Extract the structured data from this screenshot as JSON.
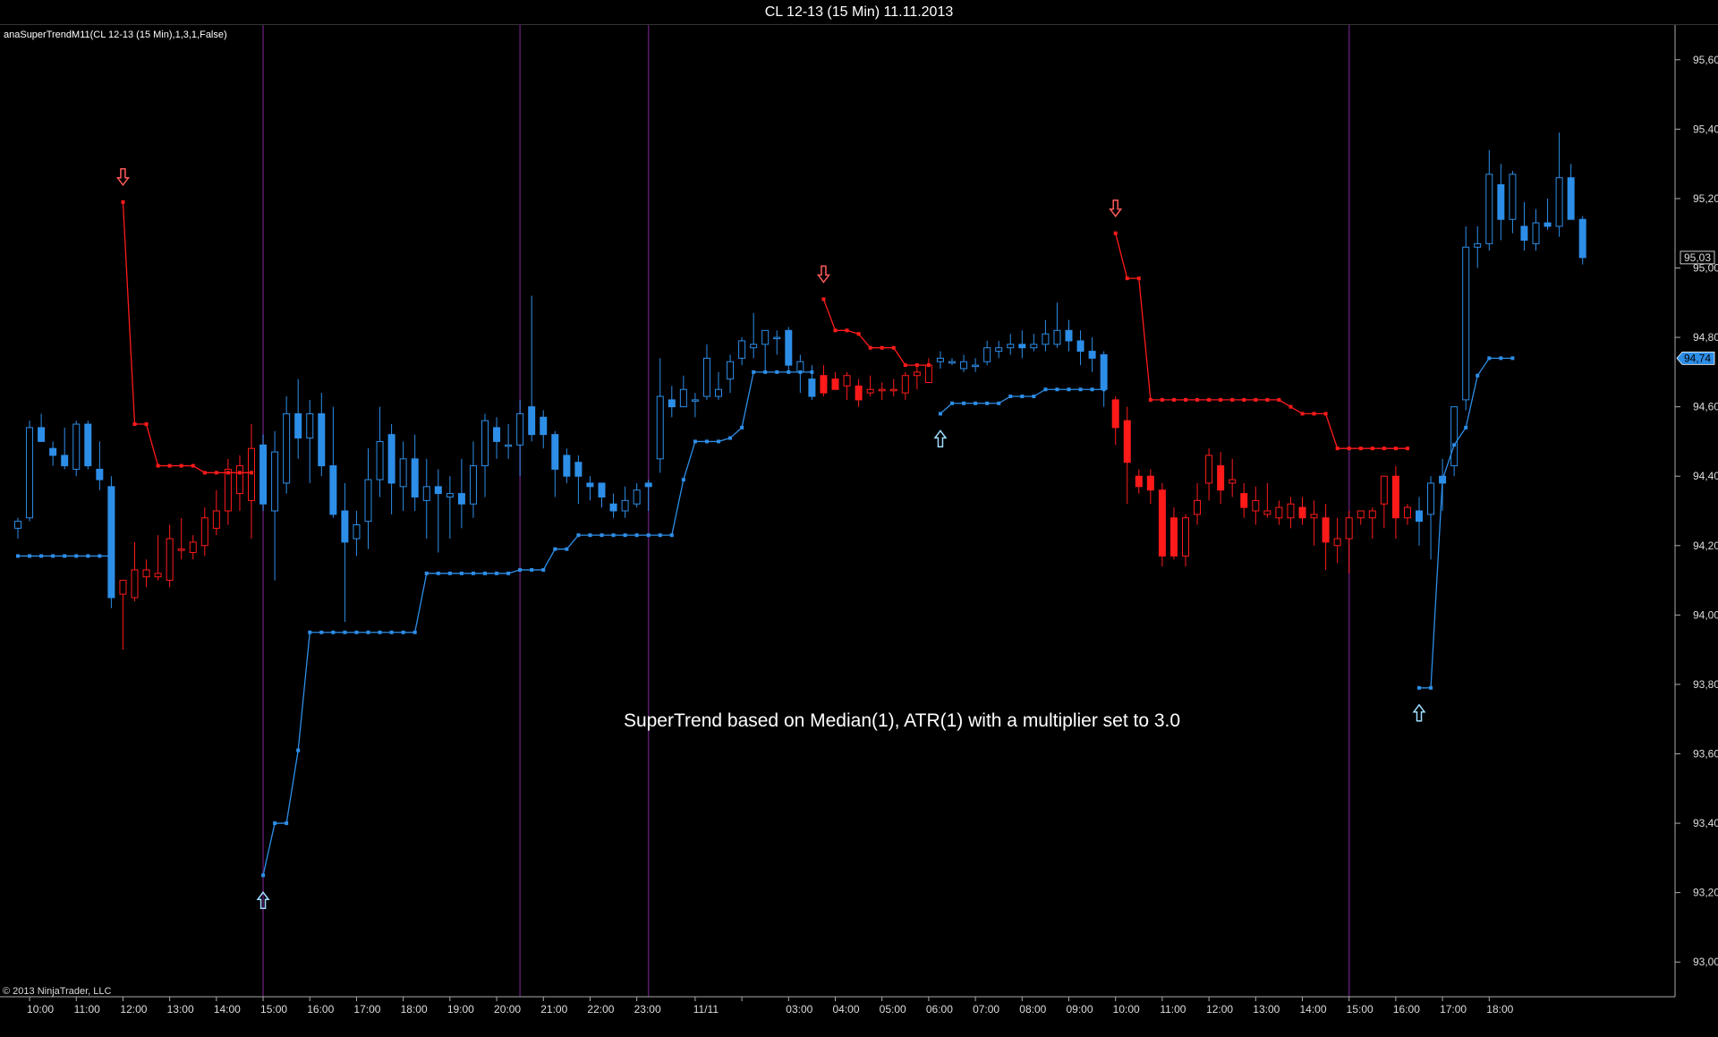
{
  "window": {
    "title": "CL 12-13 (15 Min)  11.11.2013"
  },
  "indicator_label": "anaSuperTrendM11(CL 12-13 (15 Min),1,3,1,False)",
  "annotation": "SuperTrend based on Median(1), ATR(1) with a multiplier set to 3.0",
  "copyright": "© 2013 NinjaTrader, LLC",
  "colors": {
    "up": "#2d8ee8",
    "down": "#ff1a1a",
    "session_line": "#5a1a6a",
    "background": "#000000",
    "axis": "#aaaaaa",
    "up_arrow": "#9fdcff",
    "down_arrow": "#ff5a5a"
  },
  "chart_data": {
    "type": "candlestick",
    "ylim": [
      92.9,
      95.7
    ],
    "yticks": [
      "93,00",
      "93,20",
      "93,40",
      "93,60",
      "93,80",
      "94,00",
      "94,20",
      "94,40",
      "94,60",
      "94,80",
      "95,00",
      "95,20",
      "95,40",
      "95,60"
    ],
    "ytick_values": [
      93.0,
      93.2,
      93.4,
      93.6,
      93.8,
      94.0,
      94.2,
      94.4,
      94.6,
      94.8,
      95.0,
      95.2,
      95.4,
      95.6
    ],
    "price_labels": [
      {
        "value": 95.03,
        "text": "95,03",
        "style": "last-price"
      },
      {
        "value": 94.74,
        "text": "94,74",
        "style": "supertrend"
      }
    ],
    "xticks": [
      {
        "bar": 1,
        "label": "10:00"
      },
      {
        "bar": 5,
        "label": "11:00"
      },
      {
        "bar": 9,
        "label": "12:00"
      },
      {
        "bar": 13,
        "label": "13:00"
      },
      {
        "bar": 17,
        "label": "14:00"
      },
      {
        "bar": 21,
        "label": "15:00"
      },
      {
        "bar": 25,
        "label": "16:00"
      },
      {
        "bar": 29,
        "label": "17:00"
      },
      {
        "bar": 33,
        "label": "18:00"
      },
      {
        "bar": 37,
        "label": "19:00"
      },
      {
        "bar": 41,
        "label": "20:00"
      },
      {
        "bar": 45,
        "label": "21:00"
      },
      {
        "bar": 49,
        "label": "22:00"
      },
      {
        "bar": 53,
        "label": "23:00"
      },
      {
        "bar": 58,
        "label": "11/11"
      },
      {
        "bar": 62,
        "label": ""
      },
      {
        "bar": 66,
        "label": "03:00"
      },
      {
        "bar": 70,
        "label": "04:00"
      },
      {
        "bar": 74,
        "label": "05:00"
      },
      {
        "bar": 78,
        "label": "06:00"
      },
      {
        "bar": 82,
        "label": "07:00"
      },
      {
        "bar": 86,
        "label": "08:00"
      },
      {
        "bar": 90,
        "label": "09:00"
      },
      {
        "bar": 94,
        "label": "10:00"
      },
      {
        "bar": 98,
        "label": "11:00"
      },
      {
        "bar": 102,
        "label": "12:00"
      },
      {
        "bar": 106,
        "label": "13:00"
      },
      {
        "bar": 110,
        "label": "14:00"
      },
      {
        "bar": 114,
        "label": "15:00"
      },
      {
        "bar": 118,
        "label": "16:00"
      },
      {
        "bar": 122,
        "label": "17:00"
      },
      {
        "bar": 126,
        "label": "18:00"
      }
    ],
    "session_breaks": [
      21,
      43,
      54,
      114
    ],
    "bars_note": "OHLC estimated per 15-min bar, indexed from 0",
    "candles": [
      [
        94.25,
        94.28,
        94.22,
        94.27
      ],
      [
        94.28,
        94.56,
        94.27,
        94.54
      ],
      [
        94.54,
        94.58,
        94.5,
        94.5
      ],
      [
        94.48,
        94.5,
        94.43,
        94.46
      ],
      [
        94.46,
        94.54,
        94.42,
        94.43
      ],
      [
        94.42,
        94.56,
        94.4,
        94.55
      ],
      [
        94.55,
        94.56,
        94.42,
        94.43
      ],
      [
        94.42,
        94.5,
        94.36,
        94.39
      ],
      [
        94.37,
        94.4,
        94.02,
        94.05
      ],
      [
        94.06,
        94.08,
        93.9,
        94.1
      ],
      [
        94.05,
        94.21,
        94.04,
        94.13
      ],
      [
        94.11,
        94.16,
        94.08,
        94.13
      ],
      [
        94.11,
        94.23,
        94.1,
        94.12
      ],
      [
        94.1,
        94.26,
        94.08,
        94.22
      ],
      [
        94.19,
        94.28,
        94.16,
        94.19
      ],
      [
        94.18,
        94.23,
        94.16,
        94.21
      ],
      [
        94.2,
        94.31,
        94.17,
        94.28
      ],
      [
        94.25,
        94.36,
        94.23,
        94.3
      ],
      [
        94.3,
        94.45,
        94.26,
        94.42
      ],
      [
        94.35,
        94.46,
        94.3,
        94.43
      ],
      [
        94.33,
        94.55,
        94.22,
        94.48
      ],
      [
        94.49,
        94.52,
        94.3,
        94.32
      ],
      [
        94.3,
        94.53,
        94.1,
        94.47
      ],
      [
        94.38,
        94.63,
        94.35,
        94.58
      ],
      [
        94.58,
        94.68,
        94.45,
        94.51
      ],
      [
        94.51,
        94.62,
        94.38,
        94.58
      ],
      [
        94.58,
        94.64,
        94.4,
        94.43
      ],
      [
        94.43,
        94.6,
        94.28,
        94.29
      ],
      [
        94.3,
        94.38,
        93.98,
        94.21
      ],
      [
        94.22,
        94.3,
        94.17,
        94.26
      ],
      [
        94.27,
        94.48,
        94.19,
        94.39
      ],
      [
        94.39,
        94.6,
        94.34,
        94.5
      ],
      [
        94.52,
        94.55,
        94.29,
        94.38
      ],
      [
        94.37,
        94.5,
        94.3,
        94.45
      ],
      [
        94.45,
        94.52,
        94.3,
        94.34
      ],
      [
        94.33,
        94.45,
        94.22,
        94.37
      ],
      [
        94.37,
        94.42,
        94.18,
        94.35
      ],
      [
        94.34,
        94.4,
        94.22,
        94.35
      ],
      [
        94.35,
        94.45,
        94.25,
        94.32
      ],
      [
        94.32,
        94.5,
        94.28,
        94.43
      ],
      [
        94.43,
        94.58,
        94.34,
        94.56
      ],
      [
        94.54,
        94.57,
        94.45,
        94.5
      ],
      [
        94.49,
        94.55,
        94.45,
        94.49
      ],
      [
        94.49,
        94.62,
        94.4,
        94.58
      ],
      [
        94.6,
        94.92,
        94.5,
        94.52
      ],
      [
        94.57,
        94.59,
        94.48,
        94.52
      ],
      [
        94.52,
        94.53,
        94.34,
        94.42
      ],
      [
        94.46,
        94.48,
        94.38,
        94.4
      ],
      [
        94.44,
        94.46,
        94.32,
        94.4
      ],
      [
        94.38,
        94.4,
        94.33,
        94.37
      ],
      [
        94.38,
        94.38,
        94.31,
        94.34
      ],
      [
        94.32,
        94.35,
        94.28,
        94.3
      ],
      [
        94.3,
        94.37,
        94.28,
        94.33
      ],
      [
        94.32,
        94.38,
        94.31,
        94.36
      ],
      [
        94.38,
        94.39,
        94.3,
        94.37
      ],
      [
        94.45,
        94.74,
        94.41,
        94.63
      ],
      [
        94.62,
        94.66,
        94.57,
        94.6
      ],
      [
        94.6,
        94.69,
        94.6,
        94.65
      ],
      [
        94.62,
        94.64,
        94.57,
        94.62
      ],
      [
        94.63,
        94.78,
        94.62,
        94.74
      ],
      [
        94.63,
        94.7,
        94.62,
        94.65
      ],
      [
        94.68,
        94.75,
        94.64,
        94.73
      ],
      [
        94.74,
        94.8,
        94.72,
        94.79
      ],
      [
        94.77,
        94.87,
        94.74,
        94.78
      ],
      [
        94.78,
        94.82,
        94.7,
        94.82
      ],
      [
        94.8,
        94.82,
        94.75,
        94.8
      ],
      [
        94.82,
        94.83,
        94.7,
        94.72
      ],
      [
        94.7,
        94.75,
        94.64,
        94.73
      ],
      [
        94.68,
        94.72,
        94.62,
        94.63
      ],
      [
        94.69,
        94.72,
        94.63,
        94.64
      ],
      [
        94.68,
        94.7,
        94.65,
        94.65
      ],
      [
        94.66,
        94.7,
        94.62,
        94.69
      ],
      [
        94.66,
        94.68,
        94.6,
        94.62
      ],
      [
        94.64,
        94.69,
        94.63,
        94.65
      ],
      [
        94.65,
        94.67,
        94.62,
        94.65
      ],
      [
        94.65,
        94.68,
        94.63,
        94.65
      ],
      [
        94.64,
        94.7,
        94.62,
        94.69
      ],
      [
        94.69,
        94.72,
        94.65,
        94.7
      ],
      [
        94.67,
        94.74,
        94.67,
        94.72
      ],
      [
        94.73,
        94.76,
        94.71,
        94.74
      ],
      [
        94.73,
        94.74,
        94.72,
        94.73
      ],
      [
        94.71,
        94.75,
        94.7,
        94.73
      ],
      [
        94.72,
        94.74,
        94.7,
        94.72
      ],
      [
        94.73,
        94.79,
        94.72,
        94.77
      ],
      [
        94.76,
        94.79,
        94.74,
        94.77
      ],
      [
        94.77,
        94.81,
        94.75,
        94.78
      ],
      [
        94.78,
        94.82,
        94.74,
        94.77
      ],
      [
        94.77,
        94.81,
        94.76,
        94.78
      ],
      [
        94.78,
        94.85,
        94.76,
        94.81
      ],
      [
        94.78,
        94.9,
        94.77,
        94.82
      ],
      [
        94.82,
        94.85,
        94.76,
        94.79
      ],
      [
        94.79,
        94.82,
        94.72,
        94.76
      ],
      [
        94.76,
        94.8,
        94.7,
        94.74
      ],
      [
        94.75,
        94.76,
        94.6,
        94.65
      ],
      [
        94.62,
        94.63,
        94.49,
        94.54
      ],
      [
        94.56,
        94.6,
        94.32,
        94.44
      ],
      [
        94.4,
        94.42,
        94.35,
        94.37
      ],
      [
        94.4,
        94.42,
        94.32,
        94.36
      ],
      [
        94.36,
        94.38,
        94.14,
        94.17
      ],
      [
        94.28,
        94.31,
        94.16,
        94.17
      ],
      [
        94.17,
        94.29,
        94.14,
        94.28
      ],
      [
        94.29,
        94.38,
        94.26,
        94.33
      ],
      [
        94.38,
        94.48,
        94.33,
        94.46
      ],
      [
        94.43,
        94.47,
        94.32,
        94.36
      ],
      [
        94.38,
        94.45,
        94.34,
        94.39
      ],
      [
        94.35,
        94.38,
        94.28,
        94.31
      ],
      [
        94.3,
        94.37,
        94.26,
        94.33
      ],
      [
        94.29,
        94.38,
        94.28,
        94.3
      ],
      [
        94.28,
        94.33,
        94.26,
        94.31
      ],
      [
        94.28,
        94.34,
        94.25,
        94.32
      ],
      [
        94.31,
        94.34,
        94.26,
        94.28
      ],
      [
        94.28,
        94.33,
        94.2,
        94.29
      ],
      [
        94.28,
        94.32,
        94.13,
        94.21
      ],
      [
        94.2,
        94.28,
        94.15,
        94.22
      ],
      [
        94.22,
        94.3,
        94.12,
        94.28
      ],
      [
        94.28,
        94.3,
        94.26,
        94.3
      ],
      [
        94.28,
        94.31,
        94.22,
        94.3
      ],
      [
        94.32,
        94.4,
        94.25,
        94.4
      ],
      [
        94.4,
        94.43,
        94.22,
        94.28
      ],
      [
        94.28,
        94.32,
        94.26,
        94.31
      ],
      [
        94.3,
        94.34,
        94.2,
        94.27
      ],
      [
        94.29,
        94.4,
        94.16,
        94.38
      ],
      [
        94.4,
        94.45,
        94.3,
        94.38
      ],
      [
        94.43,
        94.59,
        94.4,
        94.6
      ],
      [
        94.62,
        95.12,
        94.59,
        95.06
      ],
      [
        95.06,
        95.12,
        95.0,
        95.07
      ],
      [
        95.07,
        95.34,
        95.05,
        95.27
      ],
      [
        95.24,
        95.3,
        95.08,
        95.14
      ],
      [
        95.14,
        95.28,
        95.1,
        95.27
      ],
      [
        95.12,
        95.19,
        95.05,
        95.08
      ],
      [
        95.07,
        95.17,
        95.05,
        95.13
      ],
      [
        95.13,
        95.2,
        95.11,
        95.12
      ],
      [
        95.12,
        95.39,
        95.09,
        95.26
      ],
      [
        95.26,
        95.3,
        95.14,
        95.14
      ],
      [
        95.14,
        95.15,
        95.01,
        95.03
      ]
    ],
    "supertrend_up": [
      [
        0,
        94.17
      ],
      [
        1,
        94.17
      ],
      [
        2,
        94.17
      ],
      [
        3,
        94.17
      ],
      [
        4,
        94.17
      ],
      [
        5,
        94.17
      ],
      [
        6,
        94.17
      ],
      [
        7,
        94.17
      ],
      [
        8,
        94.17
      ],
      null,
      [
        21,
        93.25
      ],
      [
        22,
        93.4
      ],
      [
        23,
        93.4
      ],
      [
        24,
        93.61
      ],
      [
        25,
        93.95
      ],
      [
        26,
        93.95
      ],
      [
        27,
        93.95
      ],
      [
        28,
        93.95
      ],
      [
        29,
        93.95
      ],
      [
        30,
        93.95
      ],
      [
        31,
        93.95
      ],
      [
        32,
        93.95
      ],
      [
        33,
        93.95
      ],
      [
        34,
        93.95
      ],
      [
        35,
        94.12
      ],
      [
        36,
        94.12
      ],
      [
        37,
        94.12
      ],
      [
        38,
        94.12
      ],
      [
        39,
        94.12
      ],
      [
        40,
        94.12
      ],
      [
        41,
        94.12
      ],
      [
        42,
        94.12
      ],
      [
        43,
        94.13
      ],
      [
        44,
        94.13
      ],
      [
        45,
        94.13
      ],
      [
        46,
        94.19
      ],
      [
        47,
        94.19
      ],
      [
        48,
        94.23
      ],
      [
        49,
        94.23
      ],
      [
        50,
        94.23
      ],
      [
        51,
        94.23
      ],
      [
        52,
        94.23
      ],
      [
        53,
        94.23
      ],
      [
        54,
        94.23
      ],
      [
        55,
        94.23
      ],
      [
        56,
        94.23
      ],
      [
        57,
        94.39
      ],
      [
        58,
        94.5
      ],
      [
        59,
        94.5
      ],
      [
        60,
        94.5
      ],
      [
        61,
        94.51
      ],
      [
        62,
        94.54
      ],
      [
        63,
        94.7
      ],
      [
        64,
        94.7
      ],
      [
        65,
        94.7
      ],
      [
        66,
        94.7
      ],
      [
        67,
        94.7
      ],
      [
        68,
        94.7
      ],
      null,
      [
        79,
        94.58
      ],
      [
        80,
        94.61
      ],
      [
        81,
        94.61
      ],
      [
        82,
        94.61
      ],
      [
        83,
        94.61
      ],
      [
        84,
        94.61
      ],
      [
        85,
        94.63
      ],
      [
        86,
        94.63
      ],
      [
        87,
        94.63
      ],
      [
        88,
        94.65
      ],
      [
        89,
        94.65
      ],
      [
        90,
        94.65
      ],
      [
        91,
        94.65
      ],
      [
        92,
        94.65
      ],
      [
        93,
        94.65
      ],
      null,
      [
        120,
        93.79
      ],
      [
        121,
        93.79
      ],
      [
        122,
        94.39
      ],
      [
        123,
        94.49
      ],
      [
        124,
        94.54
      ],
      [
        125,
        94.69
      ],
      [
        126,
        94.74
      ],
      [
        127,
        94.74
      ],
      [
        128,
        94.74
      ]
    ],
    "supertrend_down": [
      [
        9,
        95.19
      ],
      [
        10,
        94.55
      ],
      [
        11,
        94.55
      ],
      [
        12,
        94.43
      ],
      [
        13,
        94.43
      ],
      [
        14,
        94.43
      ],
      [
        15,
        94.43
      ],
      [
        16,
        94.41
      ],
      [
        17,
        94.41
      ],
      [
        18,
        94.41
      ],
      [
        19,
        94.41
      ],
      [
        20,
        94.41
      ],
      null,
      [
        69,
        94.91
      ],
      [
        70,
        94.82
      ],
      [
        71,
        94.82
      ],
      [
        72,
        94.81
      ],
      [
        73,
        94.77
      ],
      [
        74,
        94.77
      ],
      [
        75,
        94.77
      ],
      [
        76,
        94.72
      ],
      [
        77,
        94.72
      ],
      [
        78,
        94.72
      ],
      null,
      [
        94,
        95.1
      ],
      [
        95,
        94.97
      ],
      [
        96,
        94.97
      ],
      [
        97,
        94.62
      ],
      [
        98,
        94.62
      ],
      [
        99,
        94.62
      ],
      [
        100,
        94.62
      ],
      [
        101,
        94.62
      ],
      [
        102,
        94.62
      ],
      [
        103,
        94.62
      ],
      [
        104,
        94.62
      ],
      [
        105,
        94.62
      ],
      [
        106,
        94.62
      ],
      [
        107,
        94.62
      ],
      [
        108,
        94.62
      ],
      [
        109,
        94.6
      ],
      [
        110,
        94.58
      ],
      [
        111,
        94.58
      ],
      [
        112,
        94.58
      ],
      [
        113,
        94.48
      ],
      [
        114,
        94.48
      ],
      [
        115,
        94.48
      ],
      [
        116,
        94.48
      ],
      [
        117,
        94.48
      ],
      [
        118,
        94.48
      ],
      [
        119,
        94.48
      ]
    ],
    "signals": [
      {
        "bar": 9,
        "type": "down"
      },
      {
        "bar": 21,
        "type": "up"
      },
      {
        "bar": 69,
        "type": "down"
      },
      {
        "bar": 79,
        "type": "up"
      },
      {
        "bar": 94,
        "type": "down"
      },
      {
        "bar": 120,
        "type": "up"
      }
    ]
  }
}
